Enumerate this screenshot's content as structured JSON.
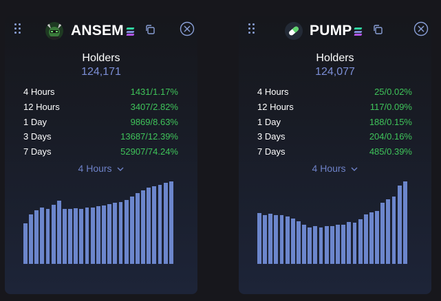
{
  "colors": {
    "accent": "#7c8fd6",
    "positive": "#3fc45a",
    "bar": "#6c86cc"
  },
  "cards": [
    {
      "token": "ANSEM",
      "logo_icon": "ansem-logo-icon",
      "holders_label": "Holders",
      "holders_value": "124,171",
      "stats": [
        {
          "label": "4 Hours",
          "value": "1431/1.17%"
        },
        {
          "label": "12 Hours",
          "value": "3407/2.82%"
        },
        {
          "label": "1 Day",
          "value": "9869/8.63%"
        },
        {
          "label": "3 Days",
          "value": "13687/12.39%"
        },
        {
          "label": "7 Days",
          "value": "52907/74.24%"
        }
      ],
      "period": "4 Hours",
      "chart_data": {
        "type": "bar",
        "values": [
          58,
          70,
          76,
          80,
          78,
          84,
          90,
          78,
          78,
          79,
          78,
          80,
          80,
          82,
          83,
          85,
          87,
          88,
          91,
          96,
          100,
          104,
          108,
          110,
          112,
          115,
          117
        ]
      }
    },
    {
      "token": "PUMP",
      "logo_icon": "pill-logo-icon",
      "holders_label": "Holders",
      "holders_value": "124,077",
      "stats": [
        {
          "label": "4 Hours",
          "value": "25/0.02%"
        },
        {
          "label": "12 Hours",
          "value": "117/0.09%"
        },
        {
          "label": "1 Day",
          "value": "188/0.15%"
        },
        {
          "label": "3 Days",
          "value": "204/0.16%"
        },
        {
          "label": "7 Days",
          "value": "485/0.39%"
        }
      ],
      "period": "4 Hours",
      "chart_data": {
        "type": "bar",
        "values": [
          73,
          70,
          72,
          70,
          70,
          68,
          65,
          61,
          56,
          52,
          54,
          52,
          54,
          54,
          56,
          56,
          60,
          59,
          64,
          71,
          74,
          76,
          88,
          92,
          96,
          112,
          118
        ]
      }
    }
  ]
}
